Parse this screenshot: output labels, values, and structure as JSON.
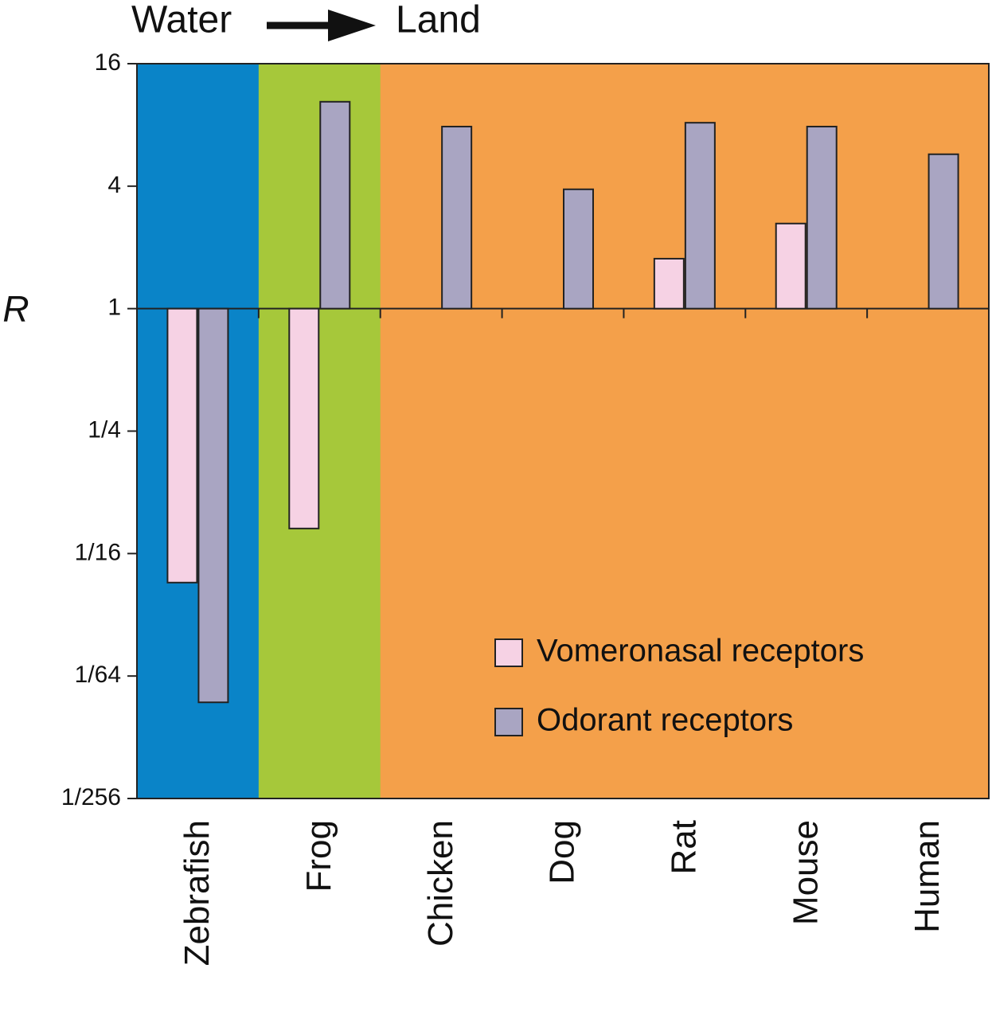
{
  "chart_data": {
    "type": "bar",
    "annotations": [
      "Water",
      "Land"
    ],
    "ylabel": "R",
    "categories": [
      "Zebrafish",
      "Frog",
      "Chicken",
      "Dog",
      "Rat",
      "Mouse",
      "Human"
    ],
    "region_colors": [
      "#0a84c8",
      "#a6c83a",
      "#f4a04a",
      "#f4a04a",
      "#f4a04a",
      "#f4a04a",
      "#f4a04a"
    ],
    "series": [
      {
        "name": "Vomeronasal receptors",
        "color": "#f6d2e4",
        "values": [
          0.045,
          0.083,
          null,
          null,
          1.76,
          2.62,
          null
        ]
      },
      {
        "name": "Odorant receptors",
        "color": "#a9a5c2",
        "values": [
          0.0116,
          10.4,
          7.85,
          3.86,
          8.2,
          7.85,
          5.74
        ]
      }
    ],
    "yscale": "log",
    "ylim": [
      0.00390625,
      16
    ],
    "yticks": [
      {
        "value": 0.00390625,
        "label": "1/256"
      },
      {
        "value": 0.015625,
        "label": "1/64"
      },
      {
        "value": 0.0625,
        "label": "1/16"
      },
      {
        "value": 0.25,
        "label": "1/4"
      },
      1,
      4,
      16
    ],
    "legend": "lower right"
  }
}
